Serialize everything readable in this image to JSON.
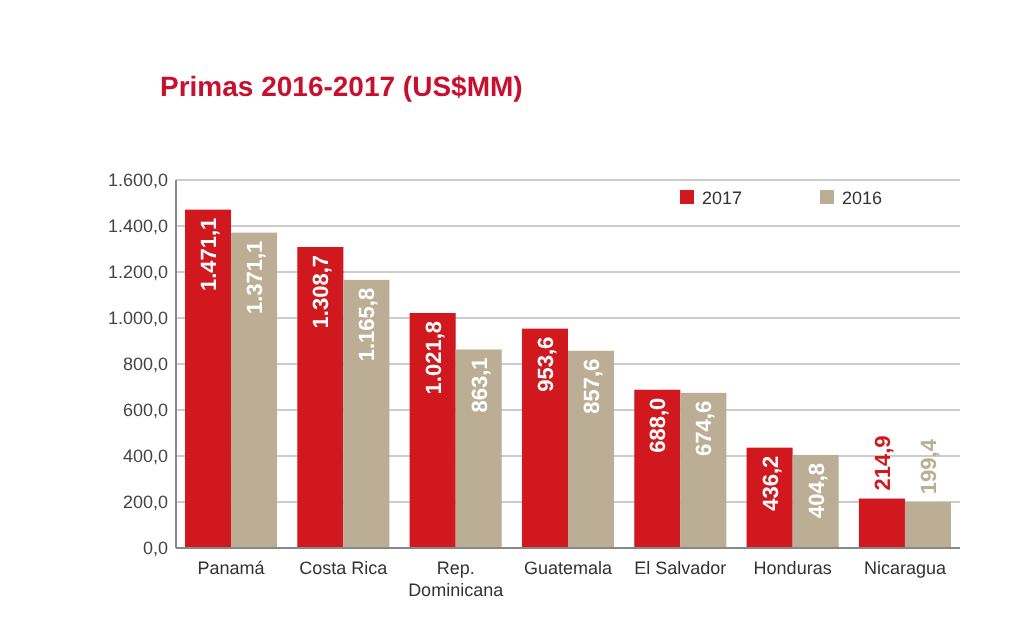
{
  "chart_data": {
    "type": "bar",
    "title": "Primas 2016-2017 (US$MM)",
    "categories": [
      "Panamá",
      "Costa Rica",
      "Rep.\nDominicana",
      "Guatemala",
      "El Salvador",
      "Honduras",
      "Nicaragua"
    ],
    "series": [
      {
        "name": "2017",
        "color": "#d0181e",
        "values": [
          1471.1,
          1308.7,
          1021.8,
          953.6,
          688.0,
          436.2,
          214.9
        ],
        "value_labels": [
          "1.471,1",
          "1.308,7",
          "1.021,8",
          "953,6",
          "688,0",
          "436,2",
          "214,9"
        ]
      },
      {
        "name": "2016",
        "color": "#bcae95",
        "values": [
          1371.1,
          1165.8,
          863.1,
          857.6,
          674.6,
          404.8,
          199.4
        ],
        "value_labels": [
          "1.371,1",
          "1.165,8",
          "863,1",
          "857,6",
          "674,6",
          "404,8",
          "199,4"
        ]
      }
    ],
    "ylim": [
      0,
      1600
    ],
    "yticks": [
      {
        "value": 0,
        "label": "0,0"
      },
      {
        "value": 200,
        "label": "200,0"
      },
      {
        "value": 400,
        "label": "400,0"
      },
      {
        "value": 600,
        "label": "600,0"
      },
      {
        "value": 800,
        "label": "800,0"
      },
      {
        "value": 1000,
        "label": "1.000,0"
      },
      {
        "value": 1200,
        "label": "1.200,0"
      },
      {
        "value": 1400,
        "label": "1.400,0"
      },
      {
        "value": 1600,
        "label": "1.600,0"
      }
    ],
    "grid": "y",
    "legend": "top right"
  }
}
